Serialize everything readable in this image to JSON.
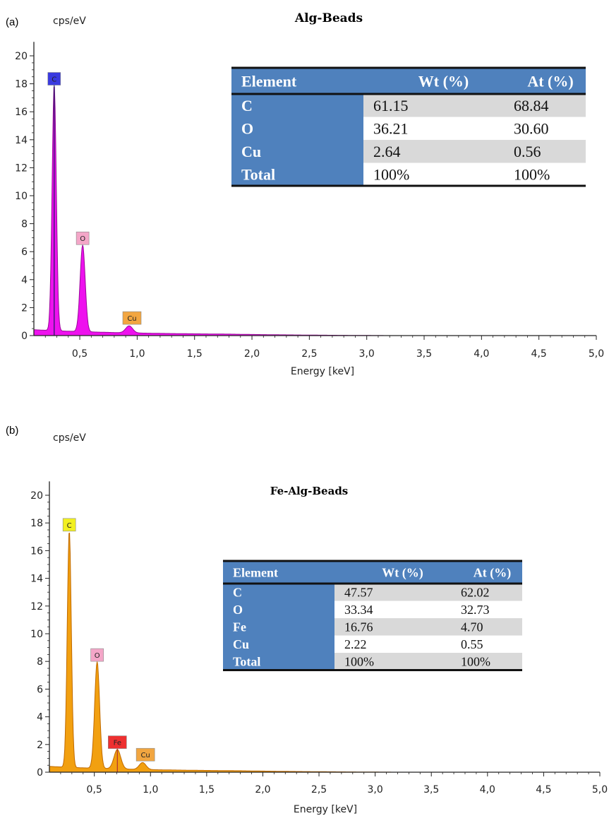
{
  "chart_data": [
    {
      "type": "line",
      "panel_label": "(a)",
      "title": "Alg-Beads",
      "ylabel": "cps/eV",
      "xlabel": "Energy [keV]",
      "xlim": [
        0.1,
        5.0
      ],
      "ylim": [
        0,
        21
      ],
      "xticks": [
        "0,5",
        "1,0",
        "1,5",
        "2,0",
        "2,5",
        "3,0",
        "3,5",
        "4,0",
        "4,5",
        "5,0"
      ],
      "yticks": [
        "0",
        "2",
        "4",
        "6",
        "8",
        "10",
        "12",
        "14",
        "16",
        "18",
        "20"
      ],
      "color": "#ee11ee",
      "line_color": "#9a0a9a",
      "peaks": [
        {
          "element": "C",
          "energy": 0.277,
          "height": 17.6,
          "badge_color": "#3a3ae0",
          "text_color": "#ffffff"
        },
        {
          "element": "O",
          "energy": 0.525,
          "height": 6.2,
          "badge_color": "#f4a6c8",
          "text_color": "#222222"
        },
        {
          "element": "Cu",
          "energy": 0.93,
          "height": 0.5,
          "badge_color": "#f2a640",
          "text_color": "#222222"
        }
      ],
      "table": {
        "headers": [
          "Element",
          "Wt (%)",
          "At (%)"
        ],
        "rows": [
          [
            "C",
            "61.15",
            "68.84"
          ],
          [
            "O",
            "36.21",
            "30.60"
          ],
          [
            "Cu",
            "2.64",
            "0.56"
          ],
          [
            "Total",
            "100%",
            "100%"
          ]
        ]
      }
    },
    {
      "type": "line",
      "panel_label": "(b)",
      "title": "Fe-Alg-Beads",
      "ylabel": "cps/eV",
      "xlabel": "Energy [keV]",
      "xlim": [
        0.1,
        5.0
      ],
      "ylim": [
        0,
        21
      ],
      "xticks": [
        "0,5",
        "1,0",
        "1,5",
        "2,0",
        "2,5",
        "3,0",
        "3,5",
        "4,0",
        "4,5",
        "5,0"
      ],
      "yticks": [
        "0",
        "2",
        "4",
        "6",
        "8",
        "10",
        "12",
        "14",
        "16",
        "18",
        "20"
      ],
      "color": "#f2a010",
      "line_color": "#c06a00",
      "peaks": [
        {
          "element": "C",
          "energy": 0.277,
          "height": 17.1,
          "badge_color": "#f2f020",
          "text_color": "#222222"
        },
        {
          "element": "O",
          "energy": 0.525,
          "height": 7.7,
          "badge_color": "#f4a6c8",
          "text_color": "#222222"
        },
        {
          "element": "Fe",
          "energy": 0.705,
          "height": 1.4,
          "badge_color": "#ee3030",
          "text_color": "#222222"
        },
        {
          "element": "Cu",
          "energy": 0.93,
          "height": 0.5,
          "badge_color": "#f2a640",
          "text_color": "#222222"
        }
      ],
      "table": {
        "headers": [
          "Element",
          "Wt (%)",
          "At (%)"
        ],
        "rows": [
          [
            "C",
            "47.57",
            "62.02"
          ],
          [
            "O",
            "33.34",
            "32.73"
          ],
          [
            "Fe",
            "16.76",
            "4.70"
          ],
          [
            "Cu",
            "2.22",
            "0.55"
          ],
          [
            "Total",
            "100%",
            "100%"
          ]
        ]
      }
    }
  ]
}
